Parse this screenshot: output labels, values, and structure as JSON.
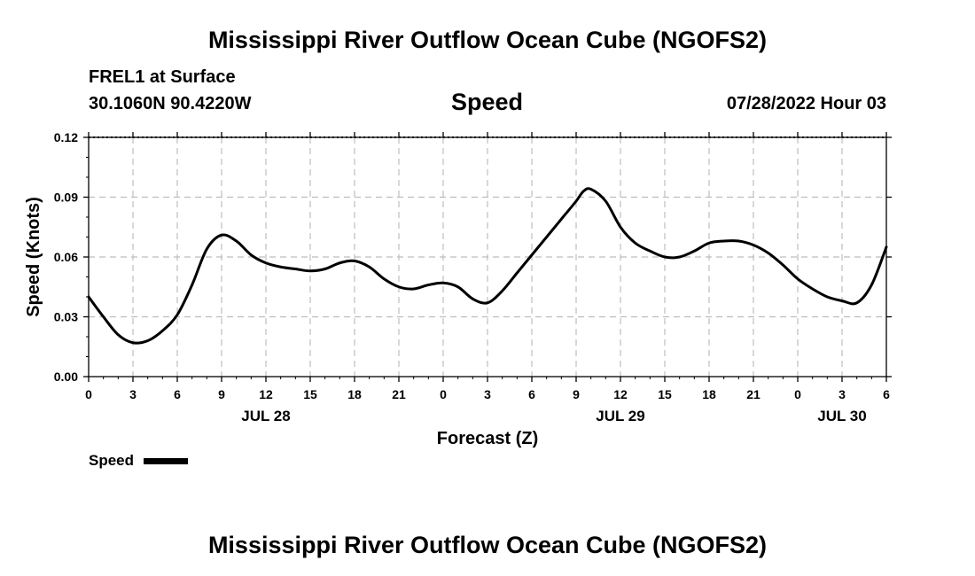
{
  "page": {
    "main_title": "Mississippi River Outflow Ocean Cube (NGOFS2)",
    "station": "FREL1 at Surface",
    "coords": "30.1060N  90.4220W",
    "chart_title": "Speed",
    "timestamp": "07/28/2022 Hour 03",
    "footer_title": "Mississippi River Outflow Ocean Cube (NGOFS2)"
  },
  "chart_data": {
    "type": "line",
    "title": "Speed",
    "xlabel": "Forecast (Z)",
    "ylabel": "Speed (Knots)",
    "x_unit": "hours",
    "xlim": [
      0,
      54
    ],
    "ylim": [
      0,
      0.12
    ],
    "y_ticks": [
      0.0,
      0.03,
      0.06,
      0.09,
      0.12
    ],
    "y_tick_labels": [
      "0.00",
      "0.03",
      "0.06",
      "0.09",
      "0.12"
    ],
    "x_ticks": [
      0,
      3,
      6,
      9,
      12,
      15,
      18,
      21,
      24,
      27,
      30,
      33,
      36,
      39,
      42,
      45,
      48,
      51,
      54
    ],
    "x_tick_labels": [
      "0",
      "3",
      "6",
      "9",
      "12",
      "15",
      "18",
      "21",
      "0",
      "3",
      "6",
      "9",
      "12",
      "15",
      "18",
      "21",
      "0",
      "3",
      "6"
    ],
    "date_labels": [
      {
        "x": 12,
        "label": "JUL 28"
      },
      {
        "x": 36,
        "label": "JUL 29"
      },
      {
        "x": 51,
        "label": "JUL 30"
      }
    ],
    "grid": true,
    "legend": {
      "label": "Speed",
      "placement": "bottom-left"
    },
    "series": [
      {
        "name": "Speed",
        "color": "#000000",
        "x": [
          0,
          1,
          2,
          3,
          4,
          5,
          6,
          7,
          8,
          9,
          10,
          11,
          12,
          13,
          14,
          15,
          16,
          17,
          18,
          19,
          20,
          21,
          22,
          23,
          24,
          25,
          26,
          27,
          28,
          29,
          30,
          31,
          32,
          33,
          33.5,
          34,
          35,
          36,
          37,
          38,
          39,
          40,
          41,
          42,
          43,
          44,
          45,
          46,
          47,
          48,
          49,
          50,
          51,
          52,
          53,
          54
        ],
        "values": [
          0.04,
          0.03,
          0.021,
          0.017,
          0.018,
          0.023,
          0.031,
          0.046,
          0.064,
          0.071,
          0.068,
          0.061,
          0.057,
          0.055,
          0.054,
          0.053,
          0.054,
          0.057,
          0.058,
          0.055,
          0.049,
          0.045,
          0.044,
          0.046,
          0.047,
          0.045,
          0.039,
          0.037,
          0.043,
          0.052,
          0.061,
          0.07,
          0.079,
          0.088,
          0.093,
          0.094,
          0.088,
          0.075,
          0.067,
          0.063,
          0.06,
          0.06,
          0.063,
          0.067,
          0.068,
          0.068,
          0.066,
          0.062,
          0.056,
          0.049,
          0.044,
          0.04,
          0.038,
          0.037,
          0.046,
          0.065
        ]
      }
    ]
  }
}
